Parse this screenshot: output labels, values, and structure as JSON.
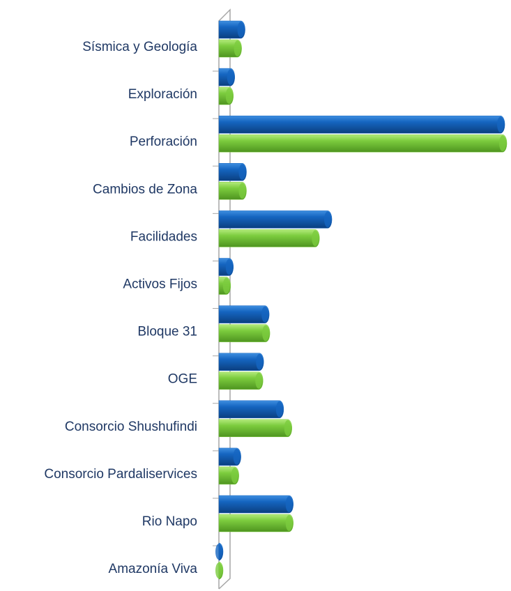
{
  "chart_data": {
    "type": "bar",
    "orientation": "horizontal",
    "categories": [
      "Sísmica y Geología",
      "Exploración",
      "Perforación",
      "Cambios de Zona",
      "Facilidades",
      "Activos Fijos",
      "Bloque 31",
      "OGE",
      "Consorcio Shushufindi",
      "Consorcio Pardaliservices",
      "Rio Napo",
      "Amazonía Viva"
    ],
    "series": [
      {
        "color": "#1565c0",
        "values": [
          38,
          23,
          415,
          40,
          164,
          21,
          73,
          65,
          94,
          32,
          108,
          6
        ]
      },
      {
        "color": "#7ccc3e",
        "values": [
          33,
          21,
          418,
          40,
          146,
          17,
          74,
          64,
          106,
          29,
          108,
          5
        ]
      }
    ],
    "xlim": [
      0,
      420
    ]
  }
}
